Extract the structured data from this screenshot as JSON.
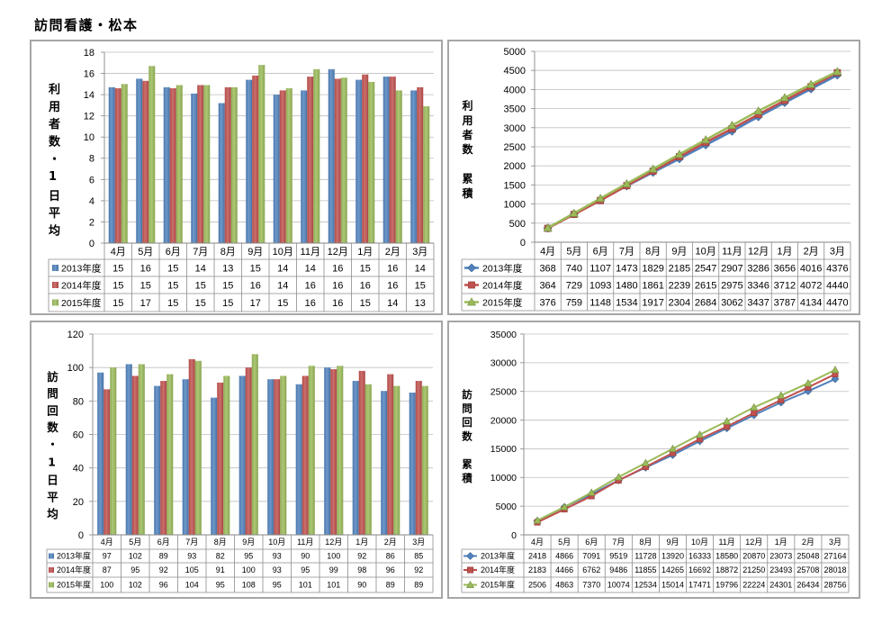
{
  "title": "訪問看護・松本",
  "chart_data": [
    {
      "type": "bar",
      "ylabel": "利用者数・1日平均",
      "ylim": [
        0,
        18
      ],
      "yticks": [
        0,
        2,
        4,
        6,
        8,
        10,
        12,
        14,
        16,
        18
      ],
      "gridlines": true,
      "legend": "data-table",
      "categories": [
        "4月",
        "5月",
        "6月",
        "7月",
        "8月",
        "9月",
        "10月",
        "11月",
        "12月",
        "1月",
        "2月",
        "3月"
      ],
      "series": [
        {
          "name": "2013年度",
          "color": "#4F81BD",
          "values": [
            14.7,
            15.5,
            14.7,
            14.1,
            13.2,
            15.4,
            14.0,
            14.4,
            16.4,
            15.4,
            15.7,
            14.4
          ],
          "table": [
            15,
            16,
            15,
            14,
            13,
            15,
            14,
            14,
            16,
            15,
            16,
            14
          ]
        },
        {
          "name": "2014年度",
          "color": "#C0504D",
          "values": [
            14.6,
            15.3,
            14.6,
            14.9,
            14.7,
            15.8,
            14.4,
            15.7,
            15.5,
            15.9,
            15.7,
            14.7
          ],
          "table": [
            15,
            15,
            15,
            15,
            15,
            16,
            14,
            16,
            16,
            16,
            16,
            15
          ]
        },
        {
          "name": "2015年度",
          "color": "#9BBB59",
          "values": [
            15.0,
            16.7,
            14.9,
            14.9,
            14.7,
            16.8,
            14.6,
            16.4,
            15.6,
            15.2,
            14.4,
            12.9
          ],
          "table": [
            15,
            17,
            15,
            15,
            15,
            17,
            15,
            16,
            16,
            15,
            14,
            13
          ]
        }
      ]
    },
    {
      "type": "line",
      "ylabel": "利用者数　累積",
      "ylim": [
        0,
        5000
      ],
      "yticks": [
        0,
        500,
        1000,
        1500,
        2000,
        2500,
        3000,
        3500,
        4000,
        4500,
        5000
      ],
      "gridlines": true,
      "legend": "data-table",
      "categories": [
        "4月",
        "5月",
        "6月",
        "7月",
        "8月",
        "9月",
        "10月",
        "11月",
        "12月",
        "1月",
        "2月",
        "3月"
      ],
      "series": [
        {
          "name": "2013年度",
          "color": "#4F81BD",
          "marker": "diamond",
          "values": [
            368,
            740,
            1107,
            1473,
            1829,
            2185,
            2547,
            2907,
            3286,
            3656,
            4016,
            4376
          ]
        },
        {
          "name": "2014年度",
          "color": "#C0504D",
          "marker": "square",
          "values": [
            364,
            729,
            1093,
            1480,
            1861,
            2239,
            2615,
            2975,
            3346,
            3712,
            4072,
            4440
          ]
        },
        {
          "name": "2015年度",
          "color": "#9BBB59",
          "marker": "triangle",
          "values": [
            376,
            759,
            1148,
            1534,
            1917,
            2304,
            2684,
            3062,
            3437,
            3787,
            4134,
            4470
          ]
        }
      ]
    },
    {
      "type": "bar",
      "ylabel": "訪問回数・1日平均",
      "ylim": [
        0,
        120
      ],
      "yticks": [
        0,
        20,
        40,
        60,
        80,
        100,
        120
      ],
      "gridlines": true,
      "legend": "data-table",
      "categories": [
        "4月",
        "5月",
        "6月",
        "7月",
        "8月",
        "9月",
        "10月",
        "11月",
        "12月",
        "1月",
        "2月",
        "3月"
      ],
      "series": [
        {
          "name": "2013年度",
          "color": "#4F81BD",
          "values": [
            97,
            102,
            89,
            93,
            82,
            95,
            93,
            90,
            100,
            92,
            86,
            85
          ]
        },
        {
          "name": "2014年度",
          "color": "#C0504D",
          "values": [
            87,
            95,
            92,
            105,
            91,
            100,
            93,
            95,
            99,
            98,
            96,
            92
          ]
        },
        {
          "name": "2015年度",
          "color": "#9BBB59",
          "values": [
            100,
            102,
            96,
            104,
            95,
            108,
            95,
            101,
            101,
            90,
            89,
            89
          ]
        }
      ]
    },
    {
      "type": "line",
      "ylabel": "訪問回数　累積",
      "ylim": [
        0,
        35000
      ],
      "yticks": [
        0,
        5000,
        10000,
        15000,
        20000,
        25000,
        30000,
        35000
      ],
      "gridlines": true,
      "legend": "data-table",
      "categories": [
        "4月",
        "5月",
        "6月",
        "7月",
        "8月",
        "9月",
        "10月",
        "11月",
        "12月",
        "1月",
        "2月",
        "3月"
      ],
      "series": [
        {
          "name": "2013年度",
          "color": "#4F81BD",
          "marker": "diamond",
          "values": [
            2418,
            4866,
            7091,
            9519,
            11728,
            13920,
            16333,
            18580,
            20870,
            23073,
            25048,
            27164
          ]
        },
        {
          "name": "2014年度",
          "color": "#C0504D",
          "marker": "square",
          "values": [
            2183,
            4466,
            6762,
            9486,
            11855,
            14265,
            16692,
            18872,
            21250,
            23493,
            25708,
            28018
          ]
        },
        {
          "name": "2015年度",
          "color": "#9BBB59",
          "marker": "triangle",
          "values": [
            2506,
            4863,
            7370,
            10074,
            12534,
            15014,
            17471,
            19796,
            22224,
            24301,
            26434,
            28756
          ]
        }
      ]
    }
  ]
}
